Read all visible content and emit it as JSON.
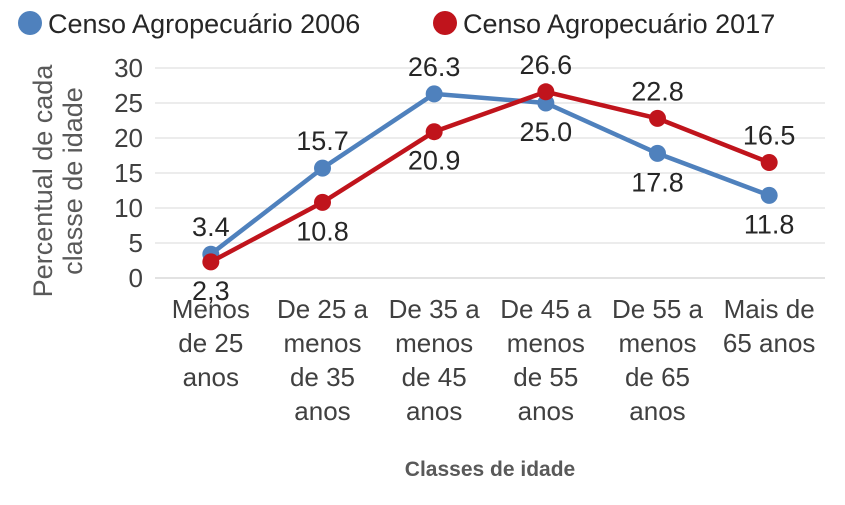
{
  "chart_data": {
    "type": "line",
    "categories": [
      [
        "Menos",
        "de 25",
        "anos"
      ],
      [
        "De 25 a",
        "menos",
        "de 35",
        "anos"
      ],
      [
        "De 35 a",
        "menos",
        "de 45",
        "anos"
      ],
      [
        "De 45 a",
        "menos",
        "de 55",
        "anos"
      ],
      [
        "De 55 a",
        "menos",
        "de 65",
        "anos"
      ],
      [
        "Mais de",
        "65 anos"
      ]
    ],
    "series": [
      {
        "name": "Censo Agropecuário 2006",
        "color": "#4F81BD",
        "values": [
          3.4,
          15.7,
          26.3,
          25.0,
          17.8,
          11.8
        ],
        "labels": [
          "3.4",
          "15.7",
          "26.3",
          "25.0",
          "17.8",
          "11.8"
        ]
      },
      {
        "name": "Censo Agropecuário 2017",
        "color": "#C0141C",
        "values": [
          2.3,
          10.8,
          20.9,
          26.6,
          22.8,
          16.5
        ],
        "labels": [
          "2,3",
          "10.8",
          "20.9",
          "26.6",
          "22.8",
          "16.5"
        ]
      }
    ],
    "ylabel": [
      "Percentual de cada",
      "classe de idade"
    ],
    "xlabel": "Classes de idade",
    "ylim": [
      0,
      30
    ],
    "yticks": [
      0,
      5,
      10,
      15,
      20,
      25,
      30
    ],
    "grid": true,
    "legend": "top"
  }
}
